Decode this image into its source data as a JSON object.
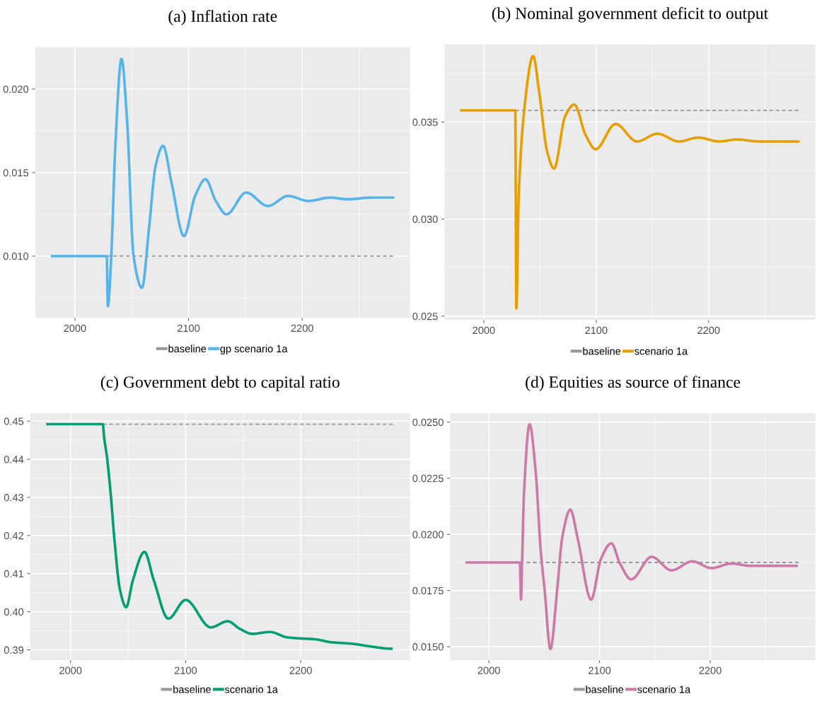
{
  "chart_data": [
    {
      "type": "line",
      "title": "(a) Inflation rate",
      "xlim": [
        1965,
        2295
      ],
      "xticks": [
        2000,
        2100,
        2200
      ],
      "ylim": [
        0.0063,
        0.0225
      ],
      "yticks": [
        {
          "value": 0.01,
          "label": "0.010"
        },
        {
          "value": 0.015,
          "label": "0.015"
        },
        {
          "value": 0.02,
          "label": "0.020"
        }
      ],
      "grid": true,
      "legend": "bottom",
      "series": [
        {
          "name": "baseline",
          "color": "#999999",
          "line_style": "dashed",
          "x": [
            2028,
            2280
          ],
          "values": [
            0.01,
            0.01
          ]
        },
        {
          "name": "gp scenario 1a",
          "color": "#56b4e9",
          "line_style": "solid",
          "x": [
            1980,
            2028,
            2029,
            2032,
            2035.5,
            2041,
            2046,
            2051.6,
            2059,
            2065.4,
            2071,
            2077.6,
            2085,
            2096,
            2105.8,
            2115,
            2124,
            2133.4,
            2150.7,
            2169.8,
            2187.6,
            2205.5,
            2224.4,
            2240.6,
            2260,
            2280
          ],
          "values": [
            0.01,
            0.01,
            0.007,
            0.01,
            0.0165,
            0.0218,
            0.018,
            0.01,
            0.0081,
            0.0118,
            0.0154,
            0.0166,
            0.0144,
            0.0112,
            0.0136,
            0.0146,
            0.0133,
            0.0125,
            0.0138,
            0.013,
            0.0136,
            0.0133,
            0.0135,
            0.0134,
            0.0135,
            0.0135
          ]
        }
      ]
    },
    {
      "type": "line",
      "title": "(b) Nominal government deficit to output",
      "xlim": [
        1965,
        2295
      ],
      "xticks": [
        2000,
        2100,
        2200
      ],
      "ylim": [
        0.0248,
        0.039
      ],
      "yticks": [
        {
          "value": 0.025,
          "label": "0.025"
        },
        {
          "value": 0.03,
          "label": "0.030"
        },
        {
          "value": 0.035,
          "label": "0.035"
        }
      ],
      "grid": true,
      "legend": "bottom",
      "series": [
        {
          "name": "baseline",
          "color": "#999999",
          "line_style": "dashed",
          "x": [
            2028,
            2280
          ],
          "values": [
            0.0356,
            0.0356
          ]
        },
        {
          "name": "scenario 1a",
          "color": "#e69f00",
          "line_style": "solid",
          "x": [
            1980,
            2028,
            2029,
            2031,
            2035.6,
            2043.9,
            2049.4,
            2056.3,
            2062.5,
            2072.4,
            2080.5,
            2090.8,
            2099.5,
            2117.2,
            2136.3,
            2154.5,
            2173.6,
            2190.8,
            2209.2,
            2225.3,
            2244.8,
            2260.9,
            2280
          ],
          "values": [
            0.0356,
            0.0356,
            0.0254,
            0.031,
            0.0354,
            0.0384,
            0.0365,
            0.0335,
            0.0326,
            0.0353,
            0.0359,
            0.0343,
            0.0336,
            0.0349,
            0.034,
            0.0344,
            0.034,
            0.0342,
            0.034,
            0.0341,
            0.034,
            0.034,
            0.034
          ]
        }
      ]
    },
    {
      "type": "line",
      "title": "(c) Government debt to capital ratio",
      "xlim": [
        1965,
        2295
      ],
      "xticks": [
        2000,
        2100,
        2200
      ],
      "ylim": [
        0.3873,
        0.4521
      ],
      "yticks": [
        {
          "value": 0.39,
          "label": "0.39"
        },
        {
          "value": 0.4,
          "label": "0.40"
        },
        0.41,
        0.42,
        0.43,
        0.44,
        0.45
      ],
      "grid": true,
      "legend": "bottom",
      "series": [
        {
          "name": "baseline",
          "color": "#999999",
          "line_style": "dashed",
          "x": [
            2028,
            2280
          ],
          "values": [
            0.4492,
            0.4492
          ]
        },
        {
          "name": "scenario 1a",
          "color": "#009e73",
          "line_style": "solid",
          "x": [
            1980,
            2028,
            2029.3,
            2031.5,
            2034.9,
            2038.3,
            2042.9,
            2048.3,
            2054.2,
            2064.2,
            2072.3,
            2085,
            2100,
            2121.8,
            2136.5,
            2147.2,
            2158,
            2173.2,
            2188,
            2199.3,
            2211.8,
            2226.5,
            2244.7,
            2260.5,
            2278.7
          ],
          "values": [
            0.4492,
            0.4492,
            0.4454,
            0.441,
            0.4309,
            0.4184,
            0.4058,
            0.4012,
            0.4083,
            0.4157,
            0.4083,
            0.3982,
            0.4031,
            0.3959,
            0.3975,
            0.3955,
            0.3942,
            0.3947,
            0.3933,
            0.393,
            0.3928,
            0.392,
            0.3916,
            0.3909,
            0.3903
          ]
        }
      ]
    },
    {
      "type": "line",
      "title": "(d) Equities as source of finance",
      "xlim": [
        1965,
        2295
      ],
      "xticks": [
        2000,
        2100,
        2200
      ],
      "ylim": [
        0.0144,
        0.0254
      ],
      "yticks": [
        {
          "value": 0.015,
          "label": "0.0150"
        },
        {
          "value": 0.0175,
          "label": "0.0175"
        },
        {
          "value": 0.02,
          "label": "0.0200"
        },
        {
          "value": 0.0225,
          "label": "0.0225"
        },
        {
          "value": 0.025,
          "label": "0.0250"
        }
      ],
      "grid": true,
      "legend": "bottom",
      "series": [
        {
          "name": "baseline",
          "color": "#999999",
          "line_style": "dashed",
          "x": [
            2034,
            2280
          ],
          "values": [
            0.01875,
            0.01875
          ]
        },
        {
          "name": "scenario 1a",
          "color": "#cc79a7",
          "line_style": "solid",
          "x": [
            1980,
            2028,
            2029,
            2030,
            2031.7,
            2036.8,
            2042.1,
            2046.8,
            2050.2,
            2055.6,
            2061.8,
            2066.4,
            2073.6,
            2080.3,
            2092.4,
            2101.2,
            2110.6,
            2118.5,
            2128.5,
            2147,
            2165,
            2183.8,
            2201.2,
            2219.2,
            2236.6,
            2254,
            2278
          ],
          "values": [
            0.01875,
            0.01875,
            0.0171,
            0.01876,
            0.0218,
            0.0249,
            0.0229,
            0.0193,
            0.0176,
            0.0149,
            0.0176,
            0.0199,
            0.0211,
            0.0198,
            0.0171,
            0.0189,
            0.0196,
            0.0187,
            0.018,
            0.019,
            0.0184,
            0.0188,
            0.0185,
            0.0187,
            0.0186,
            0.0186,
            0.0186
          ]
        }
      ]
    }
  ]
}
